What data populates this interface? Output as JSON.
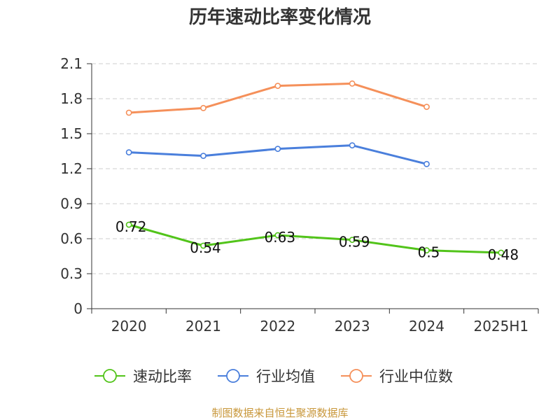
{
  "chart_data": {
    "type": "line",
    "title": "历年速动比率变化情况",
    "categories": [
      "2020",
      "2021",
      "2022",
      "2023",
      "2024",
      "2025H1"
    ],
    "ylim": [
      0,
      2.1
    ],
    "yticks": [
      "0",
      "0.3",
      "0.6",
      "0.9",
      "1.2",
      "1.5",
      "1.8",
      "2.1"
    ],
    "grid": true,
    "legend_position": "bottom",
    "series": [
      {
        "name": "速动比率",
        "color": "#52c41a",
        "values": [
          0.72,
          0.54,
          0.63,
          0.59,
          0.5,
          0.48
        ],
        "show_labels": true,
        "labels": [
          "0.72",
          "0.54",
          "0.63",
          "0.59",
          "0.5",
          "0.48"
        ]
      },
      {
        "name": "行业均值",
        "color": "#4a7fdc",
        "values": [
          1.34,
          1.31,
          1.37,
          1.4,
          1.24,
          null
        ],
        "show_labels": false
      },
      {
        "name": "行业中位数",
        "color": "#f5905a",
        "values": [
          1.68,
          1.72,
          1.91,
          1.93,
          1.73,
          null
        ],
        "show_labels": false
      }
    ]
  },
  "source_note": "制图数据来自恒生聚源数据库"
}
